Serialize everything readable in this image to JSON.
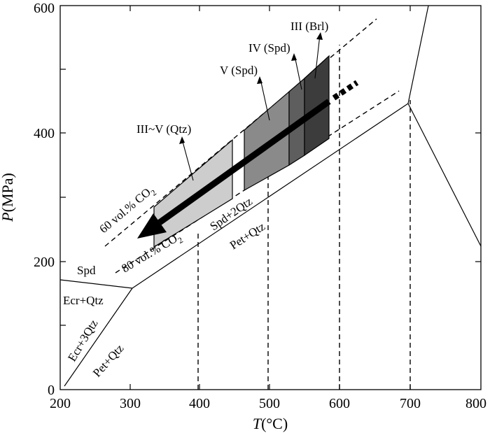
{
  "chart_data": {
    "type": "phase-diagram",
    "xlabel_italic": "T",
    "xlabel_unit": "(°C)",
    "ylabel_italic": "P",
    "ylabel_unit": "(MPa)",
    "xlim": [
      200,
      800
    ],
    "ylim": [
      0,
      600
    ],
    "x_ticks": [
      "200",
      "300",
      "400",
      "500",
      "600",
      "700",
      "800"
    ],
    "y_ticks": [
      "0",
      "200",
      "400",
      "600"
    ],
    "phase_fields": [
      "Spd",
      "Ecr+Qtz",
      "Ecr+3Qtz",
      "Pet+Qtz",
      "Spd+2Qtz",
      "Pet+Qtz"
    ],
    "isochores": [
      {
        "label_pre": "60 vol.% CO",
        "label_sub": "2"
      },
      {
        "label_pre": "80 vol.% CO",
        "label_sub": "2"
      }
    ],
    "inclusion_stages": [
      {
        "label": "III~V (Qtz)",
        "t_range": [
          340,
          450
        ],
        "color": "#cdcdcd"
      },
      {
        "label": "V (Spd)",
        "t_range": [
          467,
          530
        ],
        "color": "#8a8a8a"
      },
      {
        "label": "IV (Spd)",
        "t_range": [
          530,
          552
        ],
        "color": "#5e5e5e"
      },
      {
        "label": "III (Brl)",
        "t_range": [
          552,
          585
        ],
        "color": "#3c3c3c"
      }
    ],
    "isotherms_dashed_t": [
      400,
      500,
      600,
      700
    ]
  }
}
